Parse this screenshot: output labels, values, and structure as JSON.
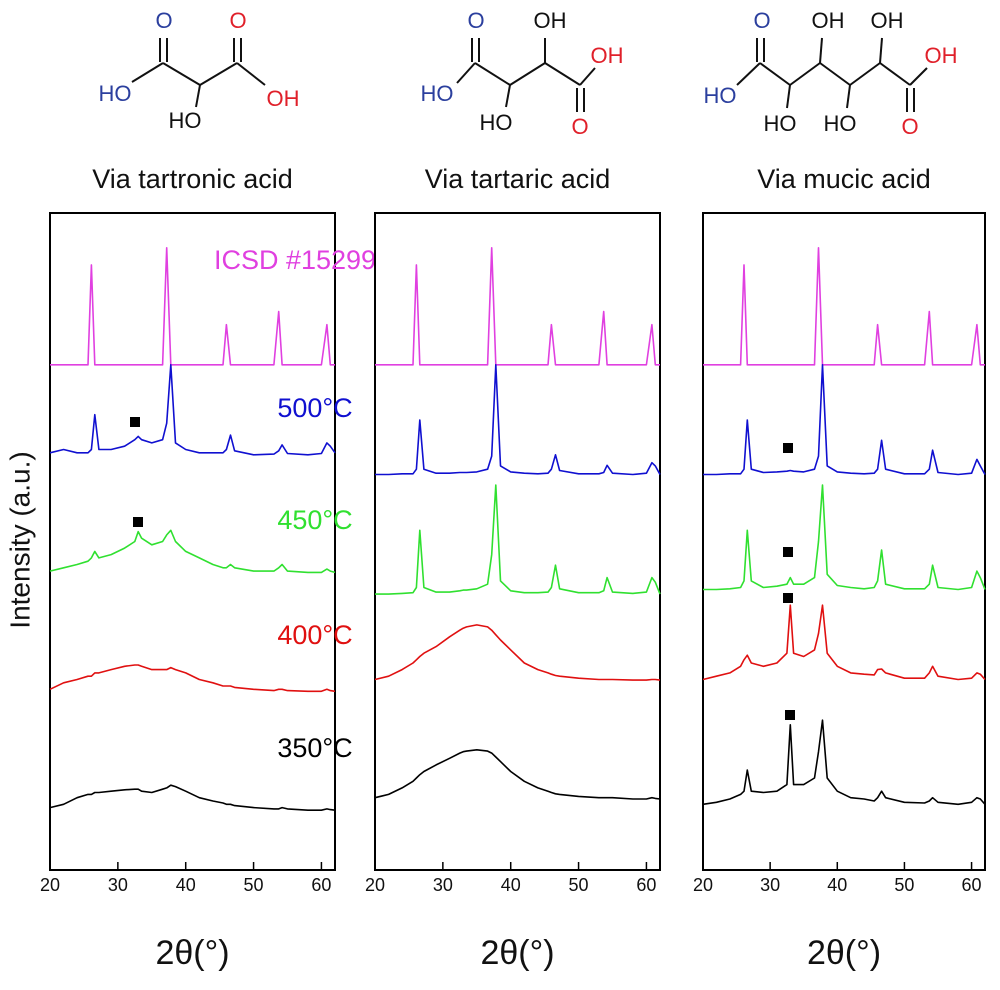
{
  "structures": [
    {
      "atoms": [
        "O",
        "HO",
        "HO",
        "O",
        "OH"
      ]
    },
    {
      "atoms": [
        "HO",
        "O",
        "HO",
        "OH",
        "O",
        "OH"
      ]
    },
    {
      "atoms": [
        "HO",
        "O",
        "HO",
        "OH",
        "HO",
        "OH",
        "O",
        "OH"
      ]
    }
  ],
  "chart_data": [
    {
      "type": "line",
      "title": "Via tartronic acid",
      "xlabel": "2θ(°)",
      "ylabel": "Intensity (a.u.)",
      "xlim": [
        20,
        62
      ],
      "xticks": [
        20,
        30,
        40,
        50,
        60
      ],
      "ylim": [
        0,
        100
      ],
      "x": [
        20,
        22,
        24,
        25.6,
        26.1,
        26.6,
        27.2,
        29,
        31,
        32.5,
        33,
        33.5,
        35,
        36.6,
        37.2,
        37.8,
        38.5,
        40,
        42,
        44,
        45.5,
        46,
        46.6,
        47.2,
        50,
        53,
        53.7,
        54.2,
        55,
        58,
        60,
        60.8,
        61.3,
        62
      ],
      "series": [
        {
          "name": "ICSD #15299",
          "color": "#e040e0",
          "values": [
            76.9,
            76.9,
            76.9,
            76.9,
            92.1,
            76.9,
            76.9,
            76.9,
            76.9,
            76.9,
            76.9,
            76.9,
            76.9,
            76.9,
            94.7,
            76.9,
            76.9,
            76.9,
            76.9,
            76.9,
            76.9,
            83,
            76.9,
            76.9,
            76.9,
            76.9,
            85,
            76.9,
            76.9,
            76.9,
            76.9,
            83,
            76.9,
            76.9
          ]
        },
        {
          "name": "500°C",
          "color": "#1010d0",
          "values": [
            63.5,
            64,
            63.5,
            63.5,
            64,
            69.3,
            64,
            64,
            64.5,
            65.5,
            66,
            65.5,
            65,
            65.5,
            68,
            76.9,
            65,
            64,
            63.5,
            63.5,
            63.5,
            64,
            66.2,
            63.8,
            63.2,
            63.3,
            63.8,
            64.7,
            63.4,
            63.2,
            63.4,
            65,
            64.5,
            63.5
          ]
        },
        {
          "name": "450°C",
          "color": "#30e030",
          "values": [
            45.5,
            46,
            46.5,
            47,
            47.5,
            48.5,
            47.5,
            48,
            49,
            50,
            51.5,
            50.5,
            49.5,
            50,
            51,
            51.7,
            50,
            48.5,
            47.5,
            46.5,
            46,
            46,
            46.5,
            46,
            45.5,
            45.5,
            46,
            46.5,
            45.5,
            45.3,
            45.3,
            45.8,
            45.5,
            45.3
          ]
        },
        {
          "name": "400°C",
          "color": "#e01010",
          "values": [
            27.5,
            28.5,
            29,
            29.5,
            29.5,
            30,
            30,
            30.5,
            31,
            31.2,
            31.2,
            31,
            30.5,
            30.5,
            30.5,
            30.8,
            30.5,
            30,
            29,
            28.5,
            28,
            28,
            28,
            27.8,
            27.5,
            27.3,
            27.5,
            27.5,
            27.3,
            27.2,
            27.2,
            27.5,
            27.3,
            27.2
          ]
        },
        {
          "name": "350°C",
          "color": "#000000",
          "values": [
            9.5,
            10,
            11,
            11.5,
            11.5,
            11.8,
            11.8,
            12,
            12.2,
            12.3,
            12.3,
            12,
            11.8,
            12.3,
            12.5,
            12.9,
            12.7,
            12,
            11,
            10.5,
            10.2,
            10,
            10,
            9.8,
            9.5,
            9.3,
            9.3,
            9.5,
            9.3,
            9.1,
            9.1,
            9.3,
            9.2,
            9.1
          ]
        }
      ]
    },
    {
      "type": "line",
      "title": "Via tartaric acid",
      "xlabel": "2θ(°)",
      "xlim": [
        20,
        62
      ],
      "xticks": [
        20,
        30,
        40,
        50,
        60
      ],
      "ylim": [
        0,
        100
      ],
      "x": [
        20,
        22,
        24,
        25.6,
        26.1,
        26.6,
        27.2,
        29,
        31,
        32.5,
        33,
        33.5,
        35,
        36.6,
        37.2,
        37.8,
        38.5,
        40,
        42,
        44,
        45.5,
        46,
        46.6,
        47.2,
        50,
        53,
        53.7,
        54.2,
        55,
        58,
        60,
        60.8,
        61.3,
        62
      ],
      "series": [
        {
          "color": "#e040e0",
          "values": [
            76.9,
            76.9,
            76.9,
            76.9,
            92.1,
            76.9,
            76.9,
            76.9,
            76.9,
            76.9,
            76.9,
            76.9,
            76.9,
            76.9,
            94.7,
            76.9,
            76.9,
            76.9,
            76.9,
            76.9,
            76.9,
            83,
            76.9,
            76.9,
            76.9,
            76.9,
            85,
            76.9,
            76.9,
            76.9,
            76.9,
            83,
            76.9,
            76.9
          ]
        },
        {
          "color": "#1010d0",
          "values": [
            60.2,
            60.2,
            60.3,
            60.3,
            61,
            68.5,
            61,
            60.4,
            60.4,
            60.5,
            60.5,
            60.5,
            60.6,
            61,
            63,
            76.9,
            61.5,
            60.6,
            60.4,
            60.3,
            60.4,
            61,
            63.2,
            60.8,
            60.3,
            60.3,
            60.5,
            61.6,
            60.4,
            60.2,
            60.4,
            62,
            61.5,
            60.2
          ]
        },
        {
          "color": "#30e030",
          "values": [
            42,
            42,
            42.1,
            42.2,
            43,
            51.7,
            43,
            42.3,
            42.3,
            42.5,
            42.6,
            42.6,
            42.8,
            43.5,
            48,
            58.6,
            44,
            42.5,
            42.2,
            42.2,
            42.3,
            43,
            46.4,
            42.8,
            42.2,
            42.2,
            42.5,
            44.5,
            42.3,
            42.1,
            42.3,
            44.5,
            43.8,
            42
          ]
        },
        {
          "color": "#e01010",
          "values": [
            29,
            29.5,
            30.5,
            31.5,
            32,
            32.5,
            33,
            34,
            35.5,
            36.5,
            36.8,
            37,
            37.3,
            37,
            36.5,
            35.8,
            35,
            33.5,
            31.5,
            30.5,
            30,
            29.8,
            29.6,
            29.5,
            29.2,
            29,
            29,
            29,
            29,
            28.9,
            28.9,
            29,
            29,
            28.9
          ]
        },
        {
          "color": "#000000",
          "values": [
            11,
            11.5,
            12.5,
            13.5,
            14,
            14.5,
            15,
            16,
            17,
            17.8,
            18,
            18.1,
            18.3,
            18.1,
            17.8,
            17.2,
            16.5,
            15,
            13.5,
            12.5,
            12,
            11.8,
            11.6,
            11.5,
            11.2,
            11,
            11,
            11,
            11,
            10.8,
            10.8,
            11,
            10.9,
            10.8
          ]
        }
      ]
    },
    {
      "type": "line",
      "title": "Via mucic acid",
      "xlabel": "2θ(°)",
      "xlim": [
        20,
        62
      ],
      "xticks": [
        20,
        30,
        40,
        50,
        60
      ],
      "ylim": [
        0,
        100
      ],
      "x": [
        20,
        22,
        24,
        25.6,
        26.1,
        26.6,
        27.2,
        29,
        31,
        32.5,
        33,
        33.5,
        35,
        36.6,
        37.2,
        37.8,
        38.5,
        40,
        42,
        44,
        45.5,
        46,
        46.6,
        47.2,
        50,
        53,
        53.7,
        54.2,
        55,
        58,
        60,
        60.8,
        61.3,
        62
      ],
      "series": [
        {
          "color": "#e040e0",
          "values": [
            76.9,
            76.9,
            76.9,
            76.9,
            92.1,
            76.9,
            76.9,
            76.9,
            76.9,
            76.9,
            76.9,
            76.9,
            76.9,
            76.9,
            94.7,
            76.9,
            76.9,
            76.9,
            76.9,
            76.9,
            76.9,
            83,
            76.9,
            76.9,
            76.9,
            76.9,
            85,
            76.9,
            76.9,
            76.9,
            76.9,
            83,
            76.9,
            76.9
          ]
        },
        {
          "color": "#1010d0",
          "values": [
            60.2,
            60.2,
            60.3,
            60.3,
            61,
            68.5,
            61,
            60.5,
            60.6,
            60.7,
            60.8,
            60.7,
            60.6,
            61,
            63,
            76.9,
            61.5,
            60.6,
            60.4,
            60.3,
            60.4,
            61,
            65.4,
            61,
            60.3,
            60.3,
            61,
            63.9,
            60.5,
            60.2,
            60.4,
            62.5,
            61.5,
            60.2
          ]
        },
        {
          "color": "#30e030",
          "values": [
            42.7,
            42.7,
            42.8,
            43,
            44,
            51.7,
            44,
            43,
            43.2,
            43.5,
            44.5,
            43.5,
            43.5,
            44.5,
            50,
            58.6,
            45,
            43.3,
            43,
            42.8,
            43,
            44,
            48.7,
            43.5,
            42.8,
            42.8,
            43.5,
            46.4,
            43,
            42.7,
            43,
            45.5,
            44.5,
            42.7
          ]
        },
        {
          "color": "#e01010",
          "values": [
            29,
            29.5,
            30,
            31,
            32,
            32.7,
            31.5,
            31,
            31.5,
            33,
            40.3,
            33,
            32.5,
            33.5,
            36,
            40.3,
            33,
            31,
            30,
            29.8,
            29.7,
            30.5,
            30.6,
            30,
            29.2,
            29.2,
            30,
            31,
            29.5,
            29,
            29.2,
            30,
            29.8,
            29
          ]
        },
        {
          "color": "#000000",
          "values": [
            10,
            10.3,
            10.8,
            11.5,
            12,
            15.2,
            12,
            11.8,
            12,
            13,
            22.1,
            13,
            13,
            14,
            18,
            22.8,
            14,
            12,
            11,
            10.8,
            10.5,
            11,
            12,
            11,
            10.3,
            10.2,
            10.5,
            11,
            10.3,
            10,
            10.3,
            11,
            10.8,
            10
          ]
        }
      ]
    }
  ]
}
